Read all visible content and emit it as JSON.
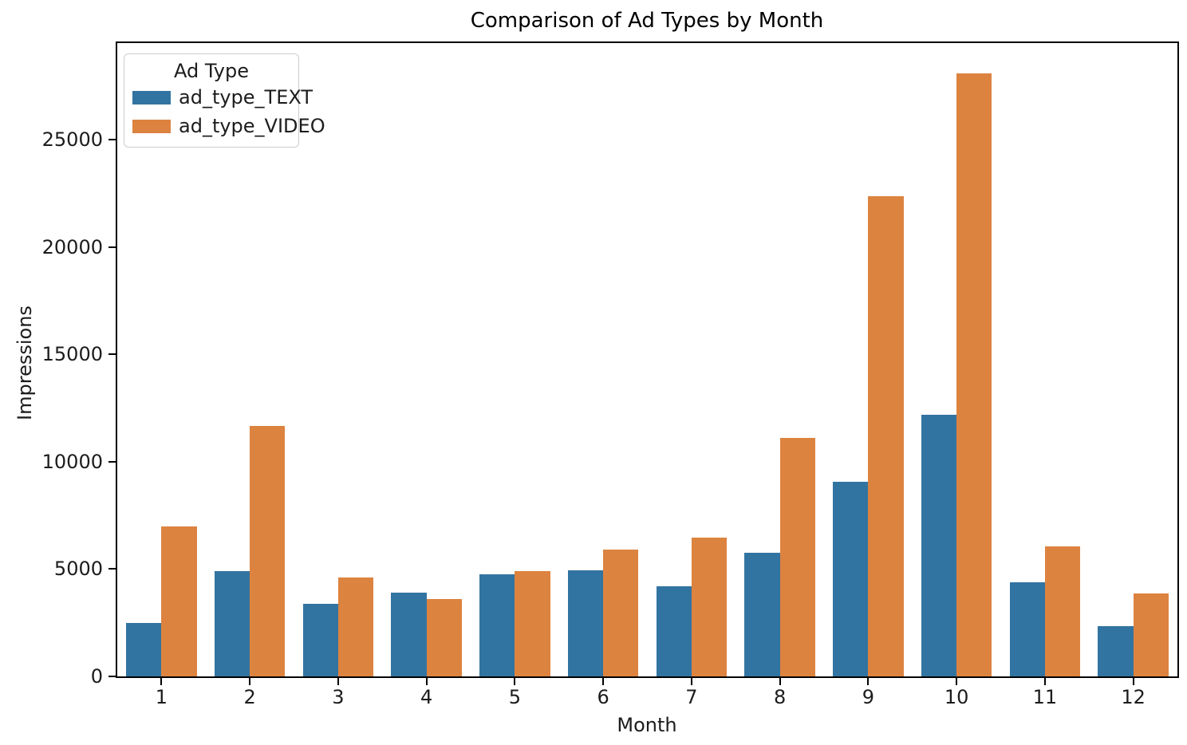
{
  "chart_data": {
    "type": "bar",
    "title": "Comparison of Ad Types by Month",
    "xlabel": "Month",
    "ylabel": "Impressions",
    "categories": [
      "1",
      "2",
      "3",
      "4",
      "5",
      "6",
      "7",
      "8",
      "9",
      "10",
      "11",
      "12"
    ],
    "series": [
      {
        "name": "ad_type_TEXT",
        "color": "#3274a1",
        "values": [
          2500,
          4900,
          3400,
          3900,
          4750,
          4950,
          4200,
          5750,
          9050,
          12200,
          4400,
          2350
        ]
      },
      {
        "name": "ad_type_VIDEO",
        "color": "#dd8340",
        "values": [
          7000,
          11650,
          4600,
          3600,
          4900,
          5900,
          6450,
          11100,
          22350,
          28100,
          6050,
          3850
        ]
      }
    ],
    "legend": {
      "title": "Ad Type",
      "position": "upper left"
    },
    "ylim": [
      0,
      29500
    ],
    "yticks": [
      0,
      5000,
      10000,
      15000,
      20000,
      25000
    ],
    "grid": false,
    "group_width_fraction": 0.8,
    "colors": {
      "background": "#ffffff",
      "spine": "#000000",
      "text": "#1c1c1c"
    }
  }
}
